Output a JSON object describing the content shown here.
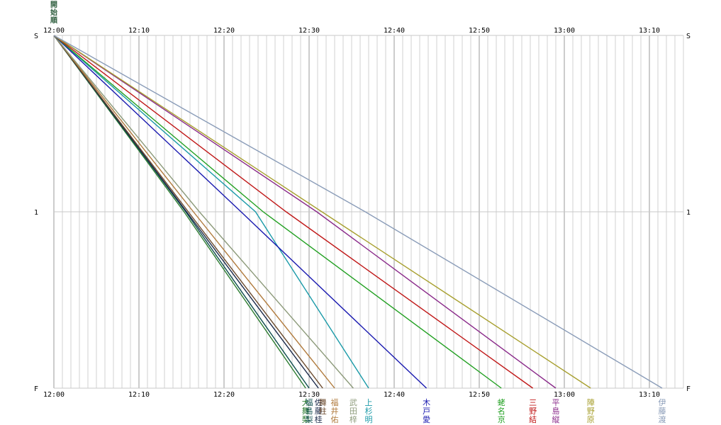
{
  "chart_data": {
    "type": "line",
    "title": "",
    "xlabel": "",
    "ylabel": "",
    "x_unit": "time",
    "xlim": [
      "12:00",
      "13:14"
    ],
    "y_ticks": [
      "S",
      "1",
      "F"
    ],
    "x_ticks": [
      "12:00",
      "12:10",
      "12:20",
      "12:30",
      "12:40",
      "12:50",
      "13:00",
      "13:10"
    ],
    "grid": true,
    "legend": "bottom",
    "series": [
      {
        "name": "大舞梨",
        "color": "#2e7d32",
        "points": [
          [
            "12:00",
            "S"
          ],
          [
            "12:15.3",
            "1"
          ],
          [
            "12:29.6",
            "F"
          ]
        ]
      },
      {
        "name": "福島梨",
        "color": "#0d4d4d",
        "points": [
          [
            "12:00",
            "S"
          ],
          [
            "12:15.5",
            "1"
          ],
          [
            "12:30.0",
            "F"
          ]
        ]
      },
      {
        "name": "佐藤桂",
        "color": "#1c2a4a",
        "points": [
          [
            "12:00",
            "S"
          ],
          [
            "12:15.6",
            "1"
          ],
          [
            "12:31.1",
            "F"
          ]
        ]
      },
      {
        "name": "舞柱",
        "color": "#6b4a2e",
        "points": [
          [
            "12:00",
            "S"
          ],
          [
            "12:15.8",
            "1"
          ],
          [
            "12:31.6",
            "F"
          ]
        ]
      },
      {
        "name": "福井佑",
        "color": "#b07a3c",
        "points": [
          [
            "12:00",
            "S"
          ],
          [
            "12:16.4",
            "1"
          ],
          [
            "12:33.0",
            "F"
          ]
        ]
      },
      {
        "name": "武田梓",
        "color": "#8c9a7a",
        "points": [
          [
            "12:00",
            "S"
          ],
          [
            "12:17.1",
            "1"
          ],
          [
            "12:35.2",
            "F"
          ]
        ]
      },
      {
        "name": "上杉明",
        "color": "#1a9aa8",
        "points": [
          [
            "12:00",
            "S"
          ],
          [
            "12:23.7",
            "1"
          ],
          [
            "12:37.0",
            "F"
          ]
        ]
      },
      {
        "name": "木戸愛",
        "color": "#1a1ab0",
        "points": [
          [
            "12:00",
            "S"
          ],
          [
            "12:22.0",
            "1"
          ],
          [
            "12:43.8",
            "F"
          ]
        ]
      },
      {
        "name": "蛯名京",
        "color": "#22a022",
        "points": [
          [
            "12:00",
            "S"
          ],
          [
            "12:24.6",
            "1"
          ],
          [
            "12:52.6",
            "F"
          ]
        ]
      },
      {
        "name": "三野結",
        "color": "#c01818",
        "points": [
          [
            "12:00",
            "S"
          ],
          [
            "12:27.3",
            "1"
          ],
          [
            "12:56.3",
            "F"
          ]
        ]
      },
      {
        "name": "平島縦",
        "color": "#8a2a8a",
        "points": [
          [
            "12:00",
            "S"
          ],
          [
            "12:30.9",
            "1"
          ],
          [
            "12:59.0",
            "F"
          ]
        ]
      },
      {
        "name": "陣野原",
        "color": "#a8a030",
        "points": [
          [
            "12:00",
            "S"
          ],
          [
            "12:31.5",
            "1"
          ],
          [
            "13:03.1",
            "F"
          ]
        ]
      },
      {
        "name": "伊藤渡",
        "color": "#8a9cb8",
        "points": [
          [
            "12:00",
            "S"
          ],
          [
            "12:36.6",
            "1"
          ],
          [
            "13:11.5",
            "F"
          ]
        ]
      }
    ]
  },
  "header_label": "開始順"
}
